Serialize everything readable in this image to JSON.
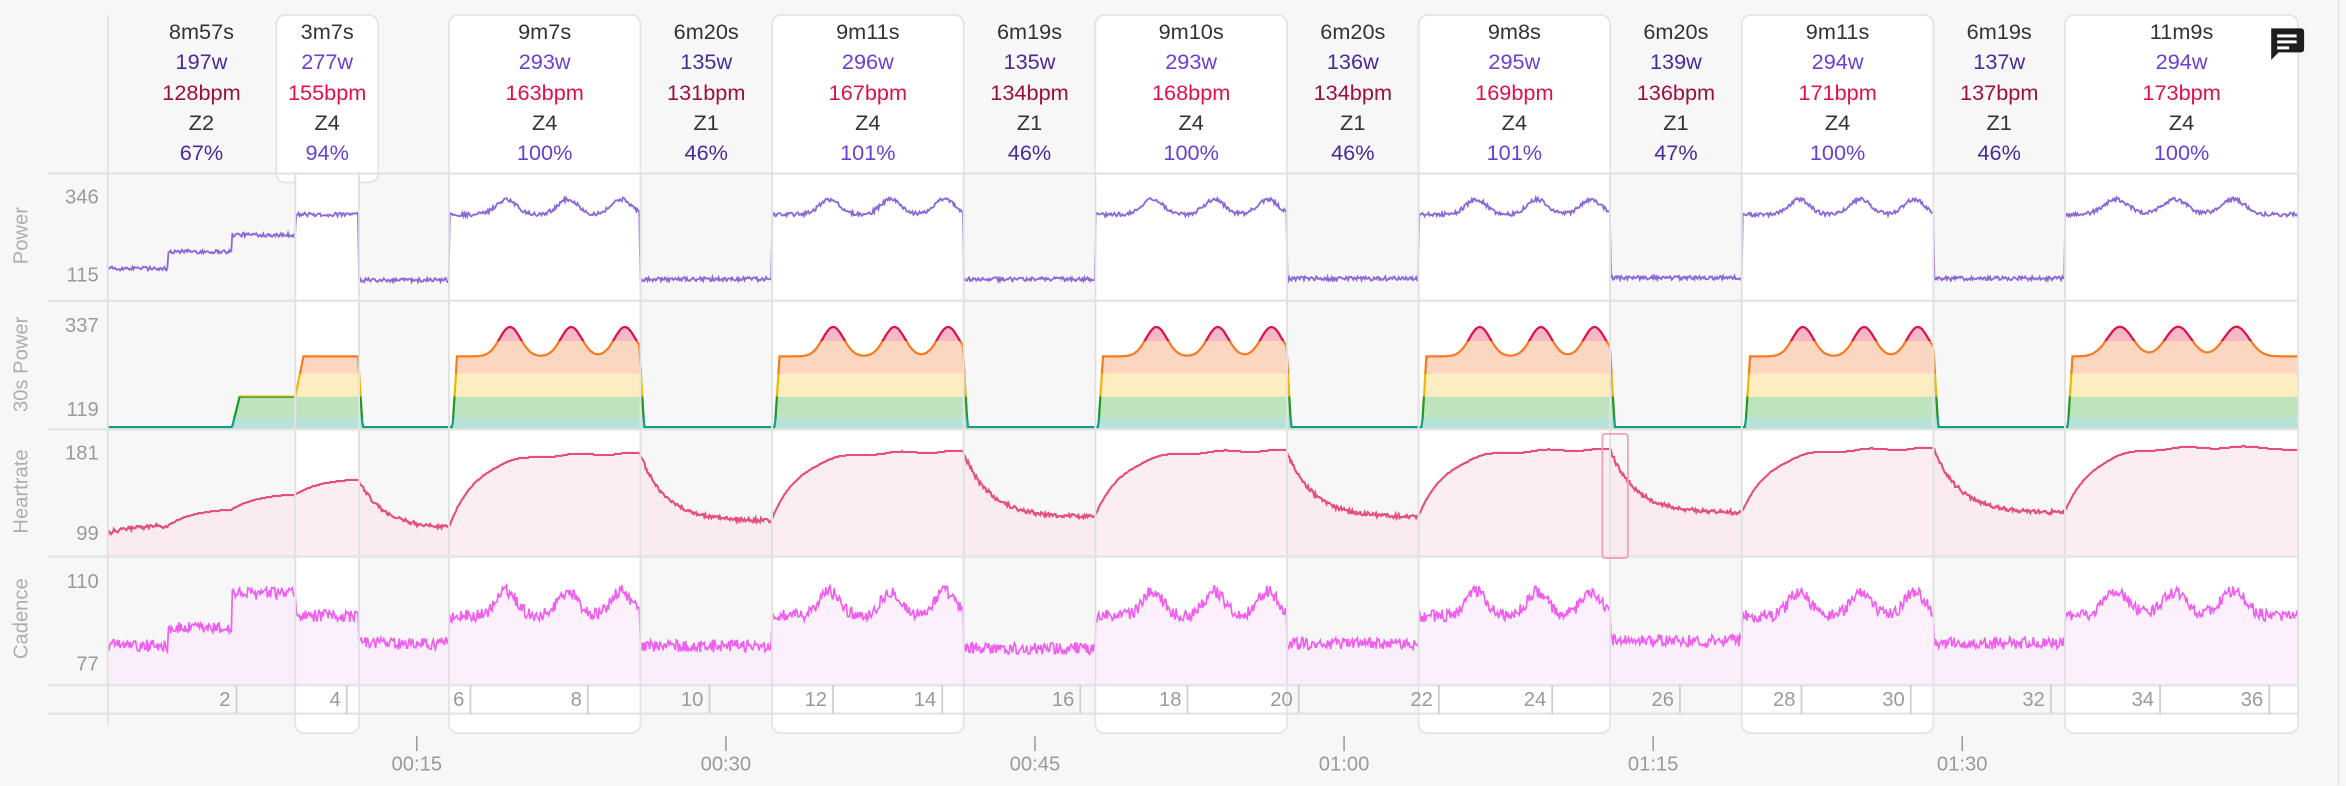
{
  "toolbar": {
    "comment_icon": "comment-icon"
  },
  "axes": {
    "power": {
      "label": "Power",
      "max": "346",
      "min": "115"
    },
    "power30": {
      "label": "30s Power",
      "max": "337",
      "min": "119"
    },
    "heartrate": {
      "label": "Heartrate",
      "max": "181",
      "min": "99"
    },
    "cadence": {
      "label": "Cadence",
      "max": "110",
      "min": "77"
    }
  },
  "intervals": [
    {
      "duration": "8m57s",
      "watts": "197w",
      "bpm": "128bpm",
      "zone": "Z2",
      "pct": "67%",
      "work": false,
      "start_min": 0,
      "end_min": 9.1
    },
    {
      "duration": "3m7s",
      "watts": "277w",
      "bpm": "155bpm",
      "zone": "Z4",
      "pct": "94%",
      "work": true,
      "start_min": 9.1,
      "end_min": 12.2
    },
    {
      "duration": "9m7s",
      "watts": "293w",
      "bpm": "163bpm",
      "zone": "Z4",
      "pct": "100%",
      "work": true,
      "start_min": 16.56,
      "end_min": 25.85
    },
    {
      "duration": "6m20s",
      "watts": "135w",
      "bpm": "131bpm",
      "zone": "Z1",
      "pct": "46%",
      "work": false,
      "start_min": 25.85,
      "end_min": 32.24
    },
    {
      "duration": "9m11s",
      "watts": "296w",
      "bpm": "167bpm",
      "zone": "Z4",
      "pct": "101%",
      "work": true,
      "start_min": 32.24,
      "end_min": 41.54
    },
    {
      "duration": "6m19s",
      "watts": "135w",
      "bpm": "134bpm",
      "zone": "Z1",
      "pct": "46%",
      "work": false,
      "start_min": 41.54,
      "end_min": 47.93
    },
    {
      "duration": "9m10s",
      "watts": "293w",
      "bpm": "168bpm",
      "zone": "Z4",
      "pct": "100%",
      "work": true,
      "start_min": 47.93,
      "end_min": 57.23
    },
    {
      "duration": "6m20s",
      "watts": "136w",
      "bpm": "134bpm",
      "zone": "Z1",
      "pct": "46%",
      "work": false,
      "start_min": 57.23,
      "end_min": 63.62
    },
    {
      "duration": "9m8s",
      "watts": "295w",
      "bpm": "169bpm",
      "zone": "Z4",
      "pct": "101%",
      "work": true,
      "start_min": 63.62,
      "end_min": 72.91
    },
    {
      "duration": "6m20s",
      "watts": "139w",
      "bpm": "136bpm",
      "zone": "Z1",
      "pct": "47%",
      "work": false,
      "start_min": 72.91,
      "end_min": 79.3
    },
    {
      "duration": "9m11s",
      "watts": "294w",
      "bpm": "171bpm",
      "zone": "Z4",
      "pct": "100%",
      "work": true,
      "start_min": 79.3,
      "end_min": 88.6
    },
    {
      "duration": "6m19s",
      "watts": "137w",
      "bpm": "137bpm",
      "zone": "Z1",
      "pct": "46%",
      "work": false,
      "start_min": 88.6,
      "end_min": 94.99
    },
    {
      "duration": "11m9s",
      "watts": "294w",
      "bpm": "173bpm",
      "zone": "Z4",
      "pct": "100%",
      "work": true,
      "start_min": 94.99,
      "end_min": 106.3
    }
  ],
  "laps": [
    {
      "label": "2",
      "end_min": 6.25
    },
    {
      "label": "4",
      "end_min": 11.6
    },
    {
      "label": "6",
      "end_min": 17.6
    },
    {
      "label": "8",
      "end_min": 23.3
    },
    {
      "label": "10",
      "end_min": 29.2
    },
    {
      "label": "12",
      "end_min": 35.2
    },
    {
      "label": "14",
      "end_min": 40.5
    },
    {
      "label": "16",
      "end_min": 47.2
    },
    {
      "label": "18",
      "end_min": 52.4
    },
    {
      "label": "20",
      "end_min": 57.8
    },
    {
      "label": "22",
      "end_min": 64.6
    },
    {
      "label": "24",
      "end_min": 70.1
    },
    {
      "label": "26",
      "end_min": 76.3
    },
    {
      "label": "28",
      "end_min": 82.2
    },
    {
      "label": "30",
      "end_min": 87.5
    },
    {
      "label": "32",
      "end_min": 94.3
    },
    {
      "label": "34",
      "end_min": 99.6
    },
    {
      "label": "36",
      "end_min": 104.9
    }
  ],
  "time_axis": [
    {
      "label": "00:15",
      "min": 15
    },
    {
      "label": "00:30",
      "min": 30
    },
    {
      "label": "00:45",
      "min": 45
    },
    {
      "label": "01:00",
      "min": 60
    },
    {
      "label": "01:15",
      "min": 75
    },
    {
      "label": "01:30",
      "min": 90
    }
  ],
  "colors": {
    "power_line": "#8a68d8",
    "hr_line": "#e5507a",
    "hr_fill": "#f9e6ec",
    "cad_line": "#f05ef0",
    "cad_fill": "#fbeafb",
    "zone_teal": "#13a07e",
    "zone_green": "#1f9a26",
    "zone_yellow": "#f2b705",
    "zone_orange": "#f57c22",
    "zone_red": "#e0104c",
    "band_teal": "#b7e2d7",
    "band_green": "#bfe3bd",
    "band_yellow": "#fdeec2",
    "band_orange": "#fbd6c0",
    "band_red": "#f4b8c6"
  },
  "chart_data": {
    "type": "line",
    "x_unit": "minutes",
    "end_min": 106.3,
    "power30_zone_thresholds": [
      209,
      240,
      274,
      323
    ],
    "segments": [
      {
        "start_min": 0,
        "end_min": 2.9,
        "power": 140,
        "cadence": 85,
        "hr": 108,
        "shape": "flat"
      },
      {
        "start_min": 2.9,
        "end_min": 6.0,
        "power": 190,
        "cadence": 92,
        "hr": 125,
        "shape": "flat"
      },
      {
        "start_min": 6.0,
        "end_min": 9.1,
        "power": 240,
        "cadence": 106,
        "hr": 140,
        "shape": "flat"
      },
      {
        "start_min": 9.1,
        "end_min": 12.2,
        "power": 300,
        "cadence": 97,
        "hr": 155,
        "shape": "flat"
      },
      {
        "start_min": 12.2,
        "end_min": 16.56,
        "power": 105,
        "cadence": 86,
        "hr": 104,
        "shape": "flat"
      },
      {
        "start_min": 16.56,
        "end_min": 25.85,
        "power": 300,
        "cadence": 97,
        "hr": 176,
        "shape": "humps"
      },
      {
        "start_min": 25.85,
        "end_min": 32.24,
        "power": 108,
        "cadence": 85,
        "hr": 112,
        "shape": "flat"
      },
      {
        "start_min": 32.24,
        "end_min": 41.54,
        "power": 300,
        "cadence": 97,
        "hr": 178,
        "shape": "humps"
      },
      {
        "start_min": 41.54,
        "end_min": 47.93,
        "power": 108,
        "cadence": 84,
        "hr": 116,
        "shape": "flat"
      },
      {
        "start_min": 47.93,
        "end_min": 57.23,
        "power": 300,
        "cadence": 97,
        "hr": 179,
        "shape": "humps"
      },
      {
        "start_min": 57.23,
        "end_min": 63.62,
        "power": 110,
        "cadence": 86,
        "hr": 116,
        "shape": "flat"
      },
      {
        "start_min": 63.62,
        "end_min": 72.91,
        "power": 300,
        "cadence": 97,
        "hr": 180,
        "shape": "humps"
      },
      {
        "start_min": 72.91,
        "end_min": 79.3,
        "power": 112,
        "cadence": 87,
        "hr": 120,
        "shape": "flat"
      },
      {
        "start_min": 79.3,
        "end_min": 88.6,
        "power": 300,
        "cadence": 97,
        "hr": 181,
        "shape": "humps"
      },
      {
        "start_min": 88.6,
        "end_min": 94.99,
        "power": 110,
        "cadence": 86,
        "hr": 120,
        "shape": "flat"
      },
      {
        "start_min": 94.99,
        "end_min": 106.3,
        "power": 300,
        "cadence": 97,
        "hr": 182,
        "shape": "humps_long"
      }
    ]
  }
}
